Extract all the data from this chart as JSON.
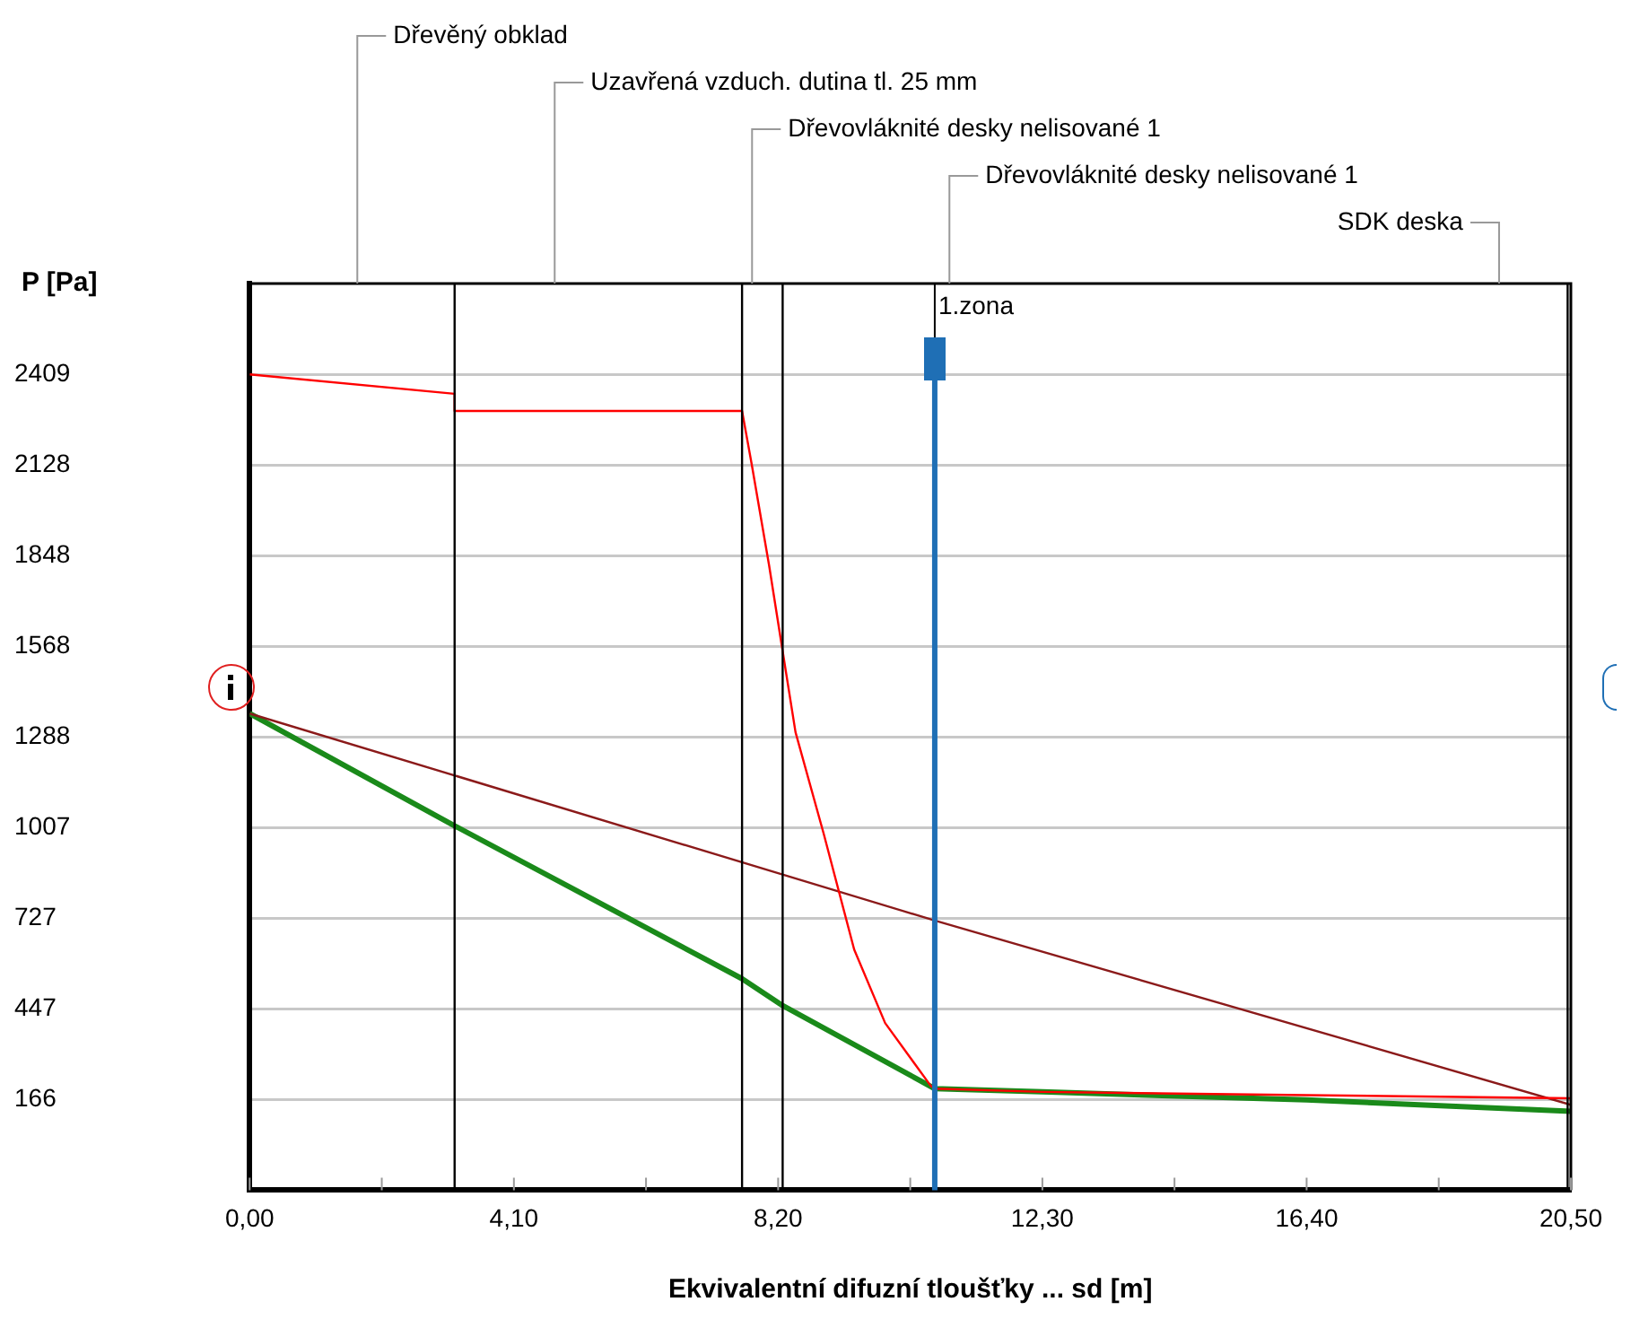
{
  "chart_data": {
    "type": "line",
    "xlabel": "Ekvivalentní difuzní tloušťky ... sd [m]",
    "ylabel": "P [Pa]",
    "xlim": [
      0,
      20.5
    ],
    "ylim": [
      -114,
      2690
    ],
    "xticks": [
      {
        "value": 0,
        "label": "0,00"
      },
      {
        "value": 2.05,
        "label": null
      },
      {
        "value": 4.1,
        "label": "4,10"
      },
      {
        "value": 6.15,
        "label": null
      },
      {
        "value": 8.2,
        "label": "8,20"
      },
      {
        "value": 10.25,
        "label": null
      },
      {
        "value": 12.3,
        "label": "12,30"
      },
      {
        "value": 14.35,
        "label": null
      },
      {
        "value": 16.4,
        "label": "16,40"
      },
      {
        "value": 18.45,
        "label": null
      },
      {
        "value": 20.5,
        "label": "20,50"
      }
    ],
    "yticks": [
      166,
      447,
      727,
      1007,
      1288,
      1568,
      1848,
      2128,
      2409
    ],
    "grid": "y",
    "legend": false,
    "marker": "none",
    "line_style": "solid",
    "series": [
      {
        "color": "#ff0000",
        "x": [
          0,
          3.18,
          3.18,
          7.64,
          7.79,
          8.06,
          8.25,
          8.47,
          8.91,
          9.38,
          9.86,
          10.57,
          10.63,
          12.3,
          16.4,
          20.5
        ],
        "values": [
          2409,
          2349,
          2296,
          2296,
          2131,
          1818,
          1578,
          1302,
          986,
          630,
          403,
          208,
          200,
          190,
          180,
          170
        ]
      },
      {
        "color": "#8b1a1a",
        "x": [
          0,
          10.63,
          20.5
        ],
        "values": [
          1360,
          720,
          150
        ]
      },
      {
        "color": "#1a8a1a",
        "x": [
          0,
          3.18,
          7.64,
          8.27,
          10.63,
          12.3,
          16.4,
          20.5
        ],
        "values": [
          1360,
          1013,
          540,
          457,
          200,
          190,
          165,
          130
        ]
      }
    ],
    "ref_lines": [
      {
        "axis": "x",
        "value": 3.18,
        "color": "#000000"
      },
      {
        "axis": "x",
        "value": 7.64,
        "color": "#000000"
      },
      {
        "axis": "x",
        "value": 8.27,
        "color": "#000000"
      },
      {
        "axis": "x",
        "value": 20.45,
        "color": "#000000"
      },
      {
        "axis": "x",
        "value": 10.63,
        "label": "1.zona",
        "color": "#1f6fb5"
      }
    ],
    "annotations": [
      "Dřevěný obklad",
      "Uzavřená vzduch. dutina tl. 25 mm",
      "Dřevovláknité desky nelisované 1",
      "Dřevovláknité desky nelisované 1",
      "SDK deska"
    ]
  }
}
